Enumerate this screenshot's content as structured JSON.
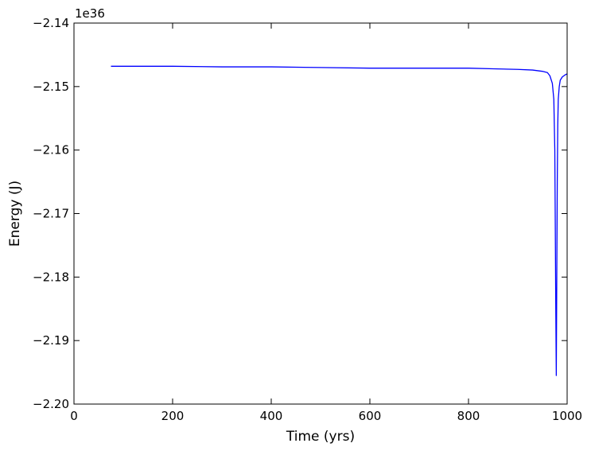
{
  "chart_data": {
    "type": "line",
    "title": "",
    "xlabel": "Time (yrs)",
    "ylabel": "Energy (J)",
    "offset_text": "1e36",
    "xlim": [
      0,
      1000
    ],
    "ylim": [
      -2.2,
      -2.14
    ],
    "y_scale_factor": 1e+36,
    "xticks": [
      0,
      200,
      400,
      600,
      800,
      1000
    ],
    "xtick_labels": [
      "0",
      "200",
      "400",
      "600",
      "800",
      "1000"
    ],
    "yticks": [
      -2.2,
      -2.19,
      -2.18,
      -2.17,
      -2.16,
      -2.15,
      -2.14
    ],
    "ytick_labels": [
      "−2.20",
      "−2.19",
      "−2.18",
      "−2.17",
      "−2.16",
      "−2.15",
      "−2.14"
    ],
    "grid": false,
    "legend": "none",
    "series": [
      {
        "color": "#0000ff",
        "x": [
          75,
          200,
          300,
          400,
          500,
          600,
          640,
          700,
          800,
          850,
          900,
          930,
          950,
          960,
          965,
          970,
          973,
          975,
          977,
          978,
          979,
          980,
          981,
          982,
          984,
          986,
          990,
          995,
          1000
        ],
        "y": [
          -2.1468,
          -2.1468,
          -2.1469,
          -2.1469,
          -2.147,
          -2.1471,
          -2.1471,
          -2.1471,
          -2.1471,
          -2.1472,
          -2.1473,
          -2.1474,
          -2.1476,
          -2.1478,
          -2.1483,
          -2.1495,
          -2.152,
          -2.16,
          -2.185,
          -2.1955,
          -2.18,
          -2.165,
          -2.156,
          -2.152,
          -2.15,
          -2.149,
          -2.1485,
          -2.1482,
          -2.148
        ]
      }
    ]
  }
}
